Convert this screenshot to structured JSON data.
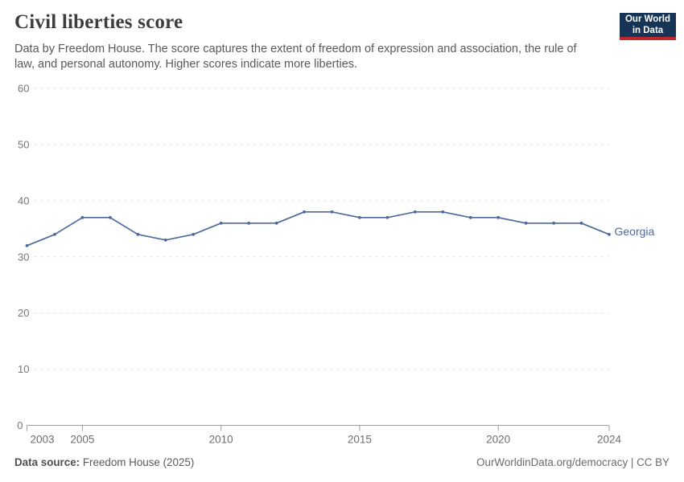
{
  "header": {
    "title": "Civil liberties score",
    "subtitle_lines": [
      "Data by Freedom House. The score captures the extent of freedom of expression and association, the rule of",
      "law, and personal autonomy. Higher scores indicate more liberties."
    ],
    "logo_lines": [
      "Our World",
      "in Data"
    ]
  },
  "chart_data": {
    "type": "line",
    "title": "Civil liberties score",
    "xlabel": "",
    "ylabel": "",
    "x": [
      2003,
      2004,
      2005,
      2006,
      2007,
      2008,
      2009,
      2010,
      2011,
      2012,
      2013,
      2014,
      2015,
      2016,
      2017,
      2018,
      2019,
      2020,
      2021,
      2022,
      2023,
      2024
    ],
    "series": [
      {
        "name": "Georgia",
        "color": "#4C6A9C",
        "values": [
          32,
          34,
          37,
          37,
          34,
          33,
          34,
          36,
          36,
          36,
          38,
          38,
          37,
          37,
          38,
          38,
          37,
          37,
          36,
          36,
          36,
          34
        ]
      }
    ],
    "ylim": [
      0,
      60
    ],
    "yticks": [
      0,
      10,
      20,
      30,
      40,
      50,
      60
    ],
    "xticks": [
      2003,
      2005,
      2010,
      2015,
      2020,
      2024
    ],
    "grid": true,
    "legend_position": "line-end"
  },
  "footer": {
    "source_bold": "Data source:",
    "source_text": "Freedom House (2025)",
    "credit": "OurWorldinData.org/democracy | CC BY"
  },
  "colors": {
    "line": "#4C6A9C",
    "logo_bg": "#163556",
    "logo_stripe": "#C0282D",
    "gridline": "#e2e2e2",
    "axis": "#9e9e9e",
    "axis_label": "#6e6e6e",
    "y_label": "#757575"
  }
}
